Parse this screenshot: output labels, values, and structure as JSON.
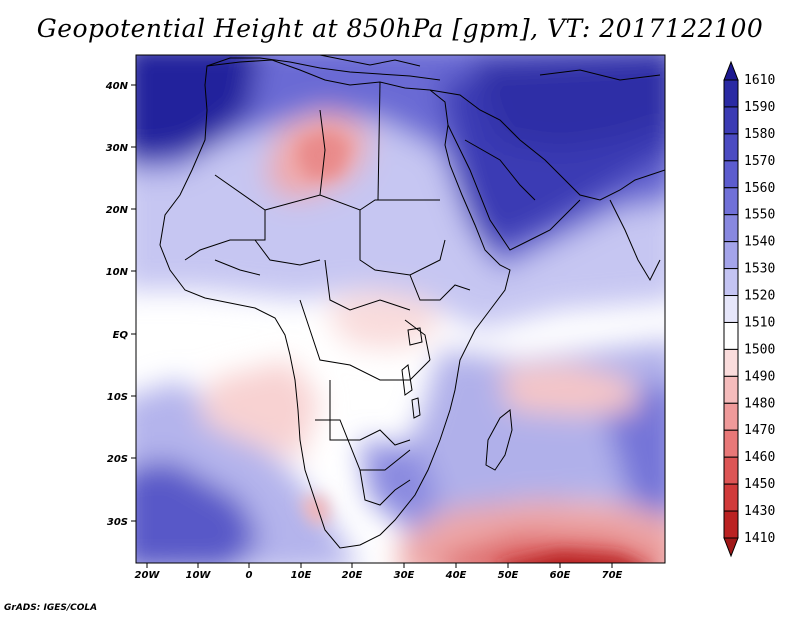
{
  "title": "Geopotential Height at 850hPa [gpm], VT: 2017122100",
  "credit": "GrADS: IGES/COLA",
  "map": {
    "lon_ticks": [
      "20W",
      "10W",
      "0",
      "10E",
      "20E",
      "30E",
      "40E",
      "50E",
      "60E",
      "70E"
    ],
    "lat_ticks": [
      "40N",
      "30N",
      "20N",
      "10N",
      "EQ",
      "10S",
      "20S",
      "30S"
    ],
    "lon_range": [
      -22,
      80
    ],
    "lat_range": [
      -37,
      45
    ]
  },
  "colorbar": {
    "labels": [
      "1610",
      "1590",
      "1580",
      "1570",
      "1560",
      "1550",
      "1540",
      "1530",
      "1520",
      "1510",
      "1500",
      "1490",
      "1480",
      "1470",
      "1460",
      "1450",
      "1430",
      "1410"
    ],
    "colors": [
      "#1d1990",
      "#2a2aa3",
      "#3b3bb4",
      "#4b4bc2",
      "#5c5cce",
      "#7070d8",
      "#8888e0",
      "#a4a4ea",
      "#c4c4f3",
      "#e6e6fa",
      "#ffffff",
      "#fadcdc",
      "#f5bcbc",
      "#ef9a9a",
      "#e87878",
      "#dd5555",
      "#d13a3a",
      "#bb2222",
      "#a01818"
    ]
  }
}
